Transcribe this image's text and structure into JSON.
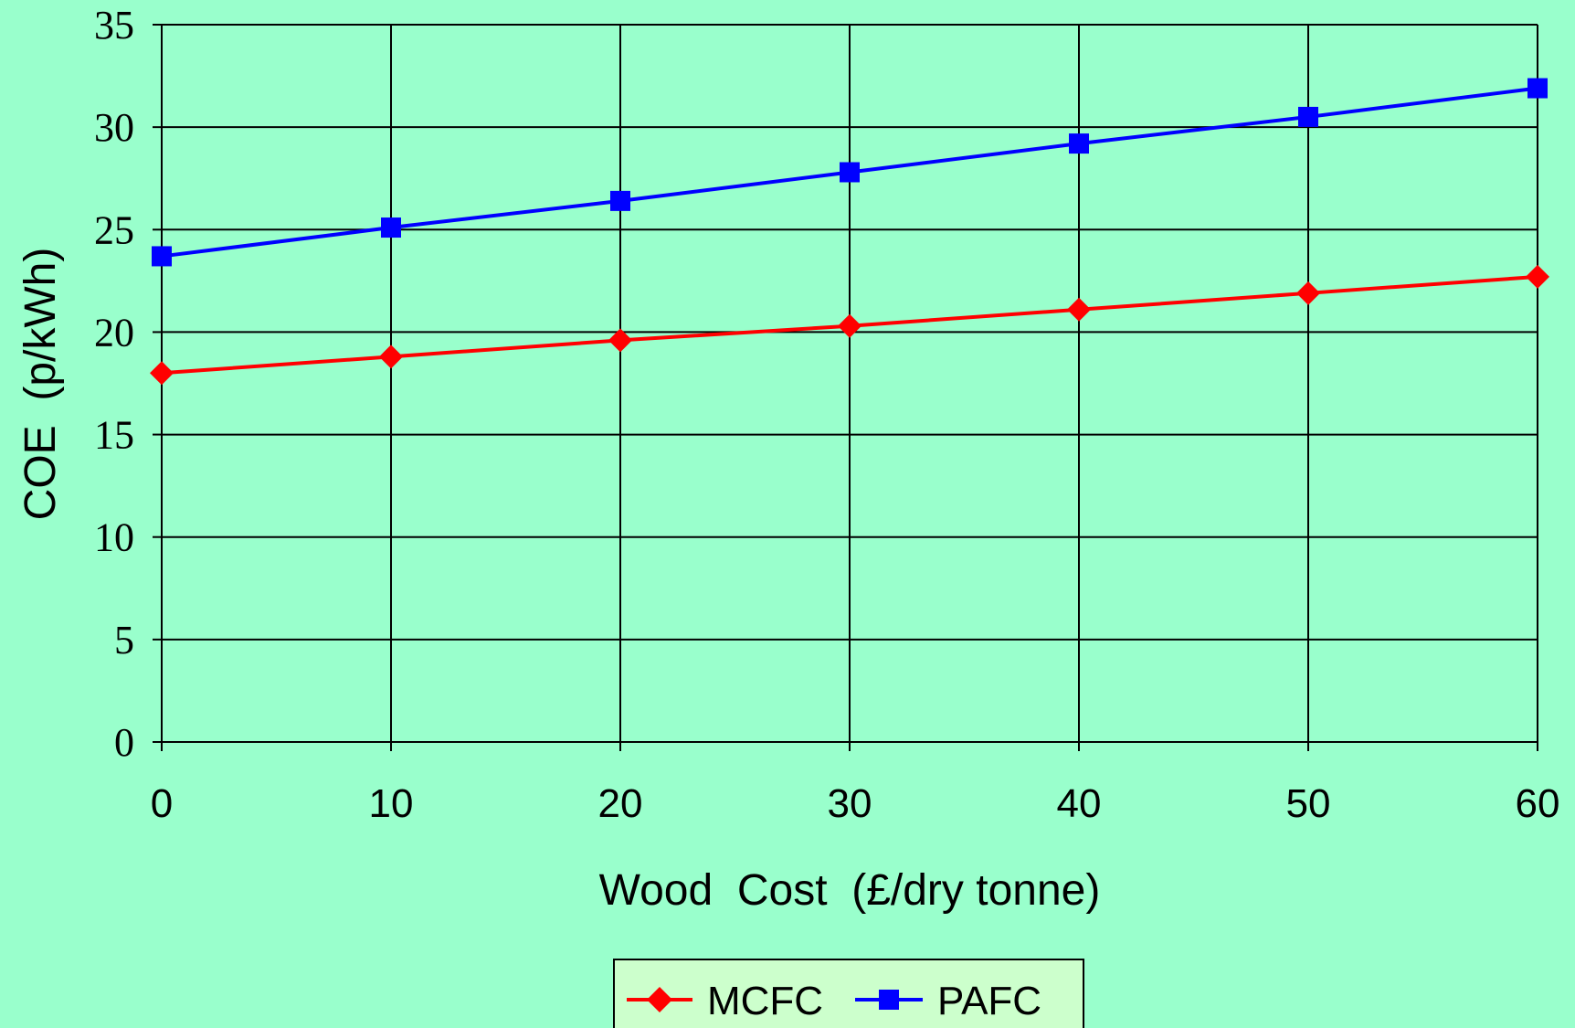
{
  "chart_data": {
    "type": "line",
    "x": [
      0,
      10,
      20,
      30,
      40,
      50,
      60
    ],
    "series": [
      {
        "name": "MCFC",
        "color": "#ff0000",
        "marker": "diamond",
        "values": [
          18.0,
          18.8,
          19.6,
          20.3,
          21.1,
          21.9,
          22.7
        ]
      },
      {
        "name": "PAFC",
        "color": "#0000ff",
        "marker": "square",
        "values": [
          23.7,
          25.1,
          26.4,
          27.8,
          29.2,
          30.5,
          31.9
        ]
      }
    ],
    "xlabel": "Wood  Cost  (£/dry tonne)",
    "ylabel": "COE  (p/kWh)",
    "xlim": [
      0,
      60
    ],
    "ylim": [
      0,
      35
    ],
    "xticks": [
      "0",
      "10",
      "20",
      "30",
      "40",
      "50",
      "60"
    ],
    "yticks": [
      "0",
      "5",
      "10",
      "15",
      "20",
      "25",
      "30",
      "35"
    ],
    "grid": true,
    "legend": "bottom",
    "background": "#99ffcc",
    "legend_background": "#ccffcc"
  }
}
